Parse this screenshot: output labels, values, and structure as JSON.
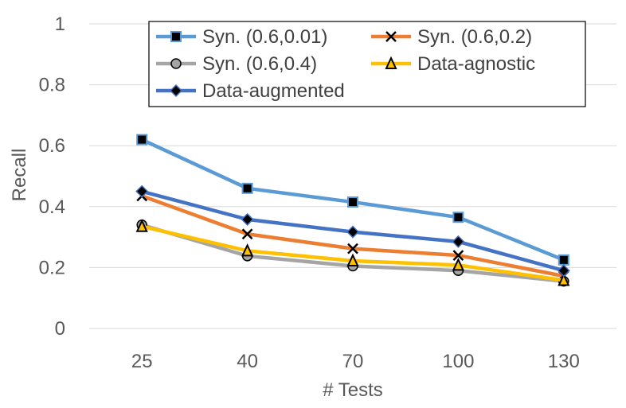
{
  "chart_data": {
    "type": "line",
    "title": "",
    "xlabel": "# Tests",
    "ylabel": "Recall",
    "categories": [
      "25",
      "40",
      "70",
      "100",
      "130"
    ],
    "ylim": [
      0,
      1
    ],
    "yticks": [
      "0",
      "0.2",
      "0.4",
      "0.6",
      "0.8",
      "1"
    ],
    "grid": true,
    "legend_position": "top-inside",
    "series": [
      {
        "name": "Syn. (0.6,0.01)",
        "color": "#5b9bd5",
        "marker": "square",
        "values": [
          0.62,
          0.46,
          0.415,
          0.365,
          0.225
        ]
      },
      {
        "name": "Syn. (0.6,0.2)",
        "color": "#ed7d31",
        "marker": "x",
        "values": [
          0.435,
          0.31,
          0.262,
          0.24,
          0.172
        ]
      },
      {
        "name": "Syn. (0.6,0.4)",
        "color": "#a5a5a5",
        "marker": "circle",
        "values": [
          0.34,
          0.238,
          0.205,
          0.19,
          0.155
        ]
      },
      {
        "name": "Data-agnostic",
        "color": "#ffc000",
        "marker": "triangle",
        "values": [
          0.335,
          0.255,
          0.222,
          0.208,
          0.158
        ]
      },
      {
        "name": "Data-augmented",
        "color": "#4472c4",
        "marker": "diamond",
        "values": [
          0.45,
          0.358,
          0.317,
          0.285,
          0.19
        ]
      }
    ]
  }
}
